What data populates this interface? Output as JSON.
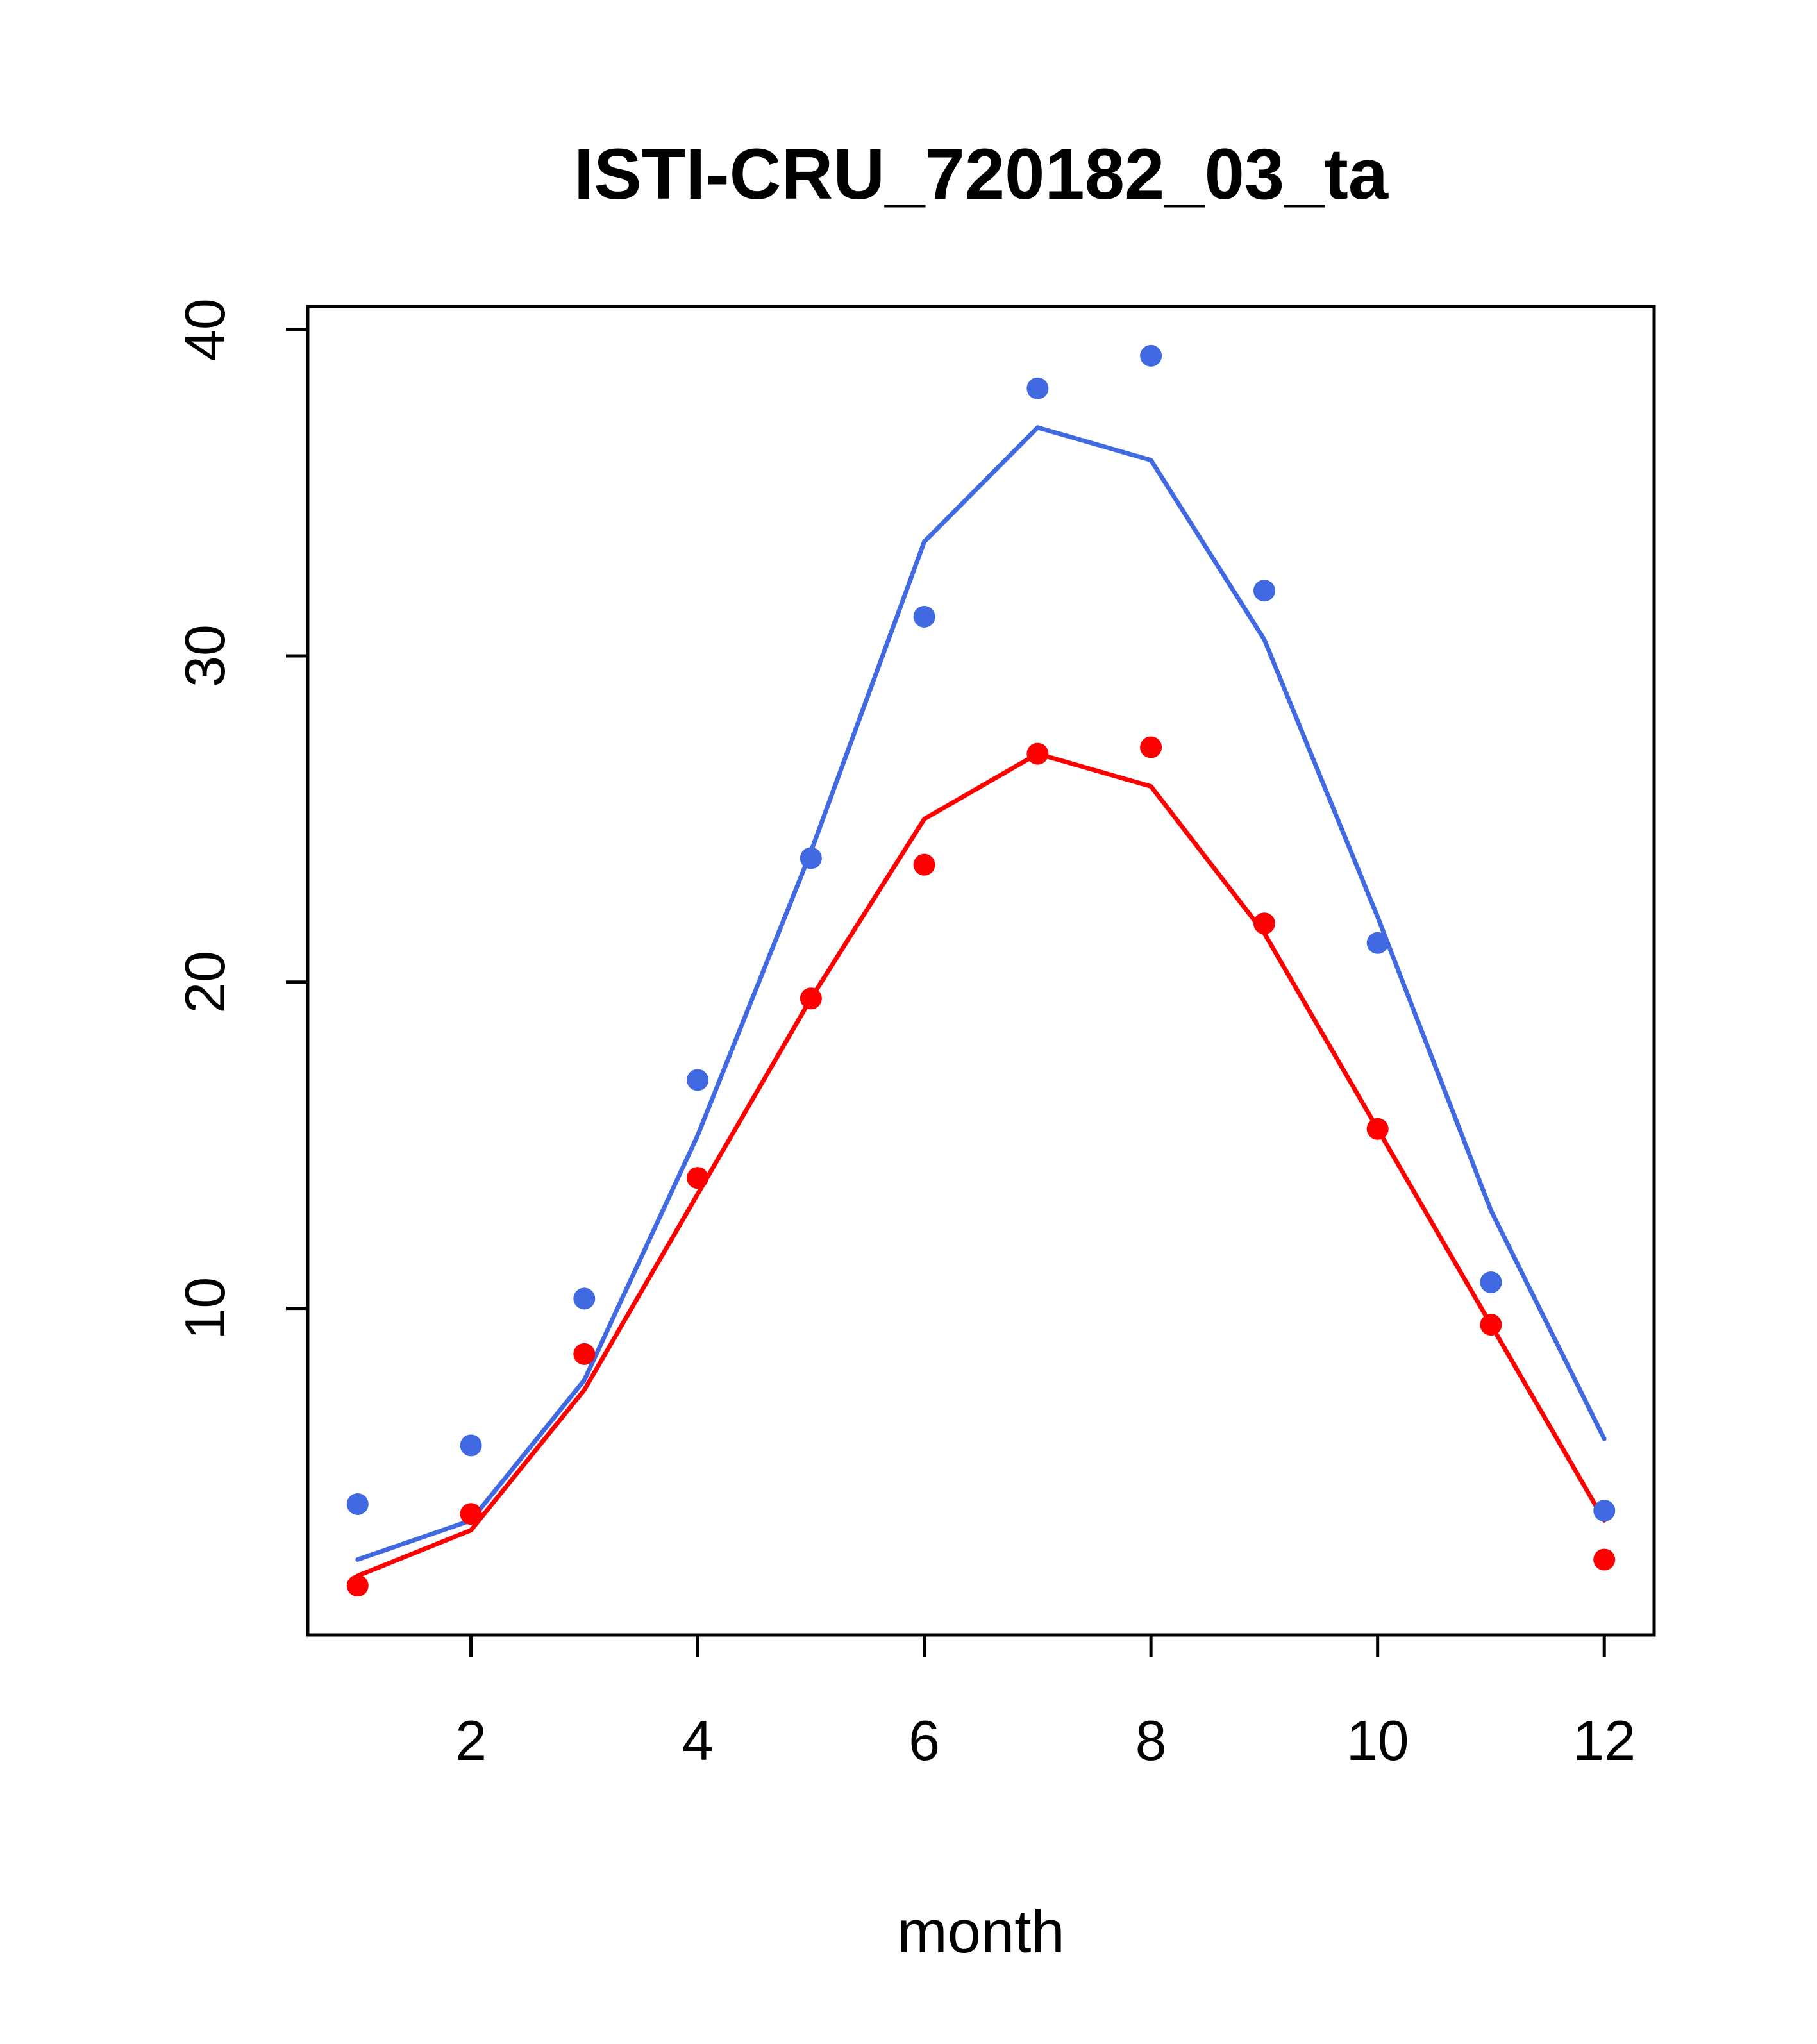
{
  "chart_data": {
    "type": "line",
    "title": "ISTI-CRU_720182_03_ta",
    "xlabel": "month",
    "ylabel": "",
    "x": [
      1,
      2,
      3,
      4,
      5,
      6,
      7,
      8,
      9,
      10,
      11,
      12
    ],
    "xlim": [
      0.56,
      12.44
    ],
    "ylim": [
      -0.01,
      40.71
    ],
    "xticks": [
      2,
      4,
      6,
      8,
      10,
      12
    ],
    "yticks": [
      10,
      20,
      30,
      40
    ],
    "grid": false,
    "legend": "none",
    "colors": {
      "blue": "#4169E1",
      "red": "#FF0000",
      "axis": "#000000"
    },
    "series": [
      {
        "name": "blue-line",
        "type": "line",
        "color": "#4169E1",
        "values": [
          2.3,
          3.5,
          7.8,
          15.3,
          24.0,
          33.5,
          37.0,
          36.0,
          30.5,
          22.0,
          13.0,
          6.0
        ]
      },
      {
        "name": "red-line",
        "type": "line",
        "color": "#FF0000",
        "values": [
          1.8,
          3.2,
          7.5,
          13.5,
          19.5,
          25.0,
          27.0,
          26.0,
          21.5,
          15.5,
          9.5,
          3.5
        ]
      },
      {
        "name": "blue-points",
        "type": "points",
        "color": "#4169E1",
        "values": [
          4.0,
          5.8,
          10.3,
          17.0,
          23.8,
          31.2,
          38.2,
          39.2,
          32.0,
          21.2,
          10.8,
          3.8
        ]
      },
      {
        "name": "red-points",
        "type": "points",
        "color": "#FF0000",
        "values": [
          1.5,
          3.7,
          8.6,
          14.0,
          19.5,
          23.6,
          27.0,
          27.2,
          21.8,
          15.5,
          9.5,
          2.3
        ]
      }
    ]
  }
}
